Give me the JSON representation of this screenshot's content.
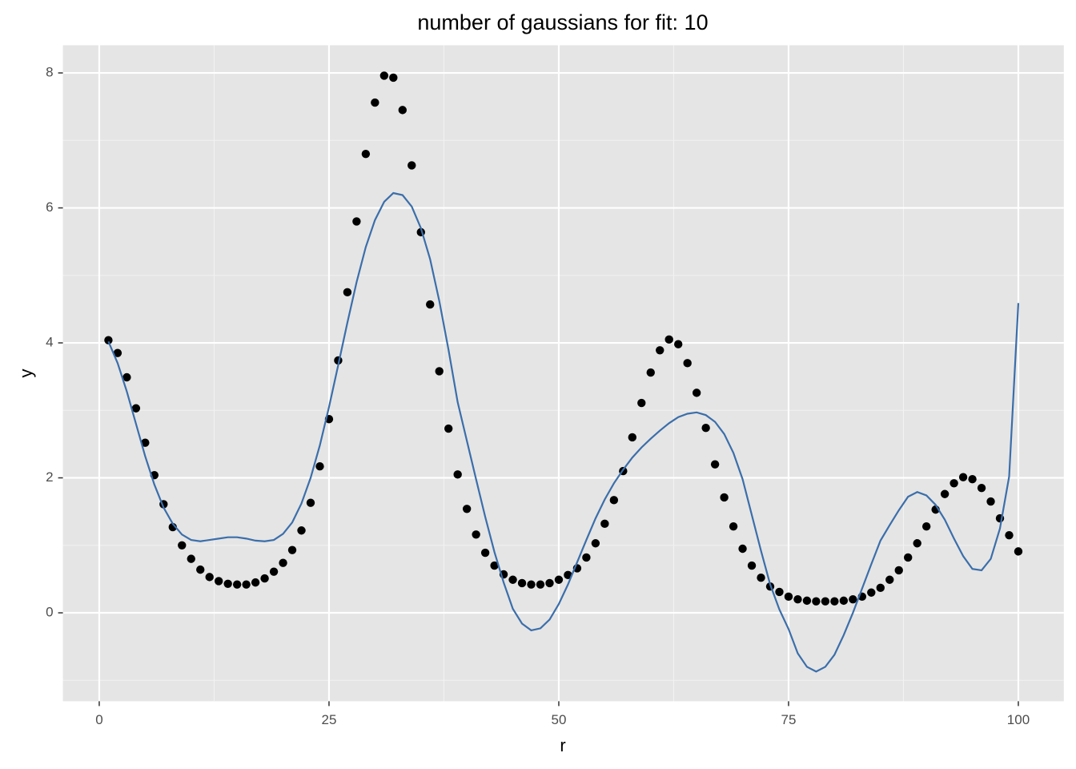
{
  "chart_data": {
    "type": "scatter",
    "title": "number of gaussians for fit: 10",
    "x_label": "r",
    "y_label": "y",
    "x": [
      1,
      2,
      3,
      4,
      5,
      6,
      7,
      8,
      9,
      10,
      11,
      12,
      13,
      14,
      15,
      16,
      17,
      18,
      19,
      20,
      21,
      22,
      23,
      24,
      25,
      26,
      27,
      28,
      29,
      30,
      31,
      32,
      33,
      34,
      35,
      36,
      37,
      38,
      39,
      40,
      41,
      42,
      43,
      44,
      45,
      46,
      47,
      48,
      49,
      50,
      51,
      52,
      53,
      54,
      55,
      56,
      57,
      58,
      59,
      60,
      61,
      62,
      63,
      64,
      65,
      66,
      67,
      68,
      69,
      70,
      71,
      72,
      73,
      74,
      75,
      76,
      77,
      78,
      79,
      80,
      81,
      82,
      83,
      84,
      85,
      86,
      87,
      88,
      89,
      90,
      91,
      92,
      93,
      94,
      95,
      96,
      97,
      98,
      99,
      100
    ],
    "series": [
      {
        "kind": "point",
        "color": "#000000",
        "values": [
          4.04,
          3.85,
          3.49,
          3.03,
          2.52,
          2.04,
          1.61,
          1.27,
          1.0,
          0.8,
          0.64,
          0.53,
          0.47,
          0.43,
          0.42,
          0.42,
          0.45,
          0.51,
          0.61,
          0.74,
          0.93,
          1.22,
          1.63,
          2.17,
          2.87,
          3.74,
          4.75,
          5.8,
          6.8,
          7.56,
          7.96,
          7.93,
          7.45,
          6.63,
          5.64,
          4.57,
          3.58,
          2.73,
          2.05,
          1.54,
          1.16,
          0.89,
          0.7,
          0.57,
          0.49,
          0.44,
          0.42,
          0.42,
          0.44,
          0.49,
          0.56,
          0.66,
          0.82,
          1.03,
          1.32,
          1.67,
          2.1,
          2.6,
          3.11,
          3.56,
          3.89,
          4.05,
          3.98,
          3.7,
          3.26,
          2.74,
          2.2,
          1.71,
          1.28,
          0.95,
          0.7,
          0.52,
          0.39,
          0.31,
          0.24,
          0.2,
          0.18,
          0.17,
          0.17,
          0.17,
          0.18,
          0.2,
          0.24,
          0.3,
          0.37,
          0.49,
          0.63,
          0.82,
          1.03,
          1.28,
          1.53,
          1.76,
          1.92,
          2.01,
          1.98,
          1.85,
          1.65,
          1.4,
          1.15,
          0.91
        ]
      },
      {
        "kind": "line",
        "color": "#3b6eaa",
        "values": [
          4.02,
          3.7,
          3.28,
          2.8,
          2.32,
          1.9,
          1.56,
          1.32,
          1.16,
          1.08,
          1.06,
          1.08,
          1.1,
          1.12,
          1.12,
          1.1,
          1.07,
          1.06,
          1.08,
          1.17,
          1.34,
          1.62,
          2.0,
          2.48,
          3.05,
          3.67,
          4.3,
          4.9,
          5.42,
          5.82,
          6.09,
          6.22,
          6.19,
          6.02,
          5.7,
          5.24,
          4.62,
          3.9,
          3.12,
          2.55,
          1.98,
          1.42,
          0.9,
          0.45,
          0.06,
          -0.16,
          -0.26,
          -0.23,
          -0.1,
          0.13,
          0.42,
          0.75,
          1.08,
          1.4,
          1.68,
          1.92,
          2.12,
          2.3,
          2.45,
          2.58,
          2.7,
          2.81,
          2.9,
          2.95,
          2.97,
          2.93,
          2.83,
          2.65,
          2.37,
          1.98,
          1.45,
          0.92,
          0.42,
          0.05,
          -0.24,
          -0.6,
          -0.8,
          -0.87,
          -0.8,
          -0.62,
          -0.33,
          0.0,
          0.36,
          0.72,
          1.07,
          1.3,
          1.52,
          1.72,
          1.79,
          1.74,
          1.6,
          1.38,
          1.1,
          0.84,
          0.65,
          0.63,
          0.8,
          1.25,
          2.02,
          4.59
        ]
      }
    ],
    "xlim": [
      -3.95,
      104.95
    ],
    "xticks": [
      0,
      25,
      50,
      75,
      100
    ],
    "ylim": [
      -1.31,
      8.41
    ],
    "yticks": [
      0,
      2,
      4,
      6,
      8
    ],
    "grid": true
  }
}
